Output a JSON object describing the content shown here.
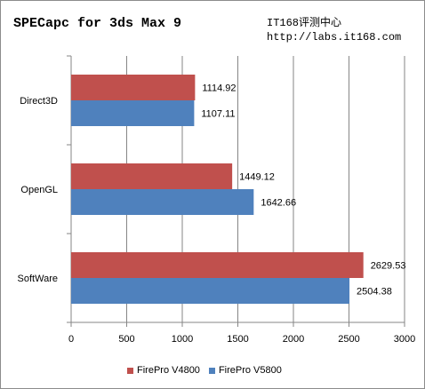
{
  "header": {
    "title": "SPECapc for 3ds Max 9",
    "brand_line1": "IT168评测中心",
    "brand_line2": "http://labs.it168.com"
  },
  "chart_data": {
    "type": "bar",
    "orientation": "horizontal",
    "categories": [
      "Direct3D",
      "OpenGL",
      "SoftWare"
    ],
    "series": [
      {
        "name": "FirePro V4800",
        "color": "#c0504d",
        "values": [
          1114.92,
          1449.12,
          2629.53
        ],
        "labels": [
          "1114.92",
          "1449.12",
          "2629.53"
        ]
      },
      {
        "name": "FirePro V5800",
        "color": "#4f81bd",
        "values": [
          1107.11,
          1642.66,
          2504.38
        ],
        "labels": [
          "1107.11",
          "1642.66",
          "2504.38"
        ]
      }
    ],
    "xlim": [
      0,
      3000
    ],
    "xticks": [
      "0",
      "500",
      "1000",
      "1500",
      "2000",
      "2500",
      "3000"
    ],
    "xlabel": "",
    "ylabel": "",
    "grid": "vertical",
    "legend": "bottom"
  }
}
